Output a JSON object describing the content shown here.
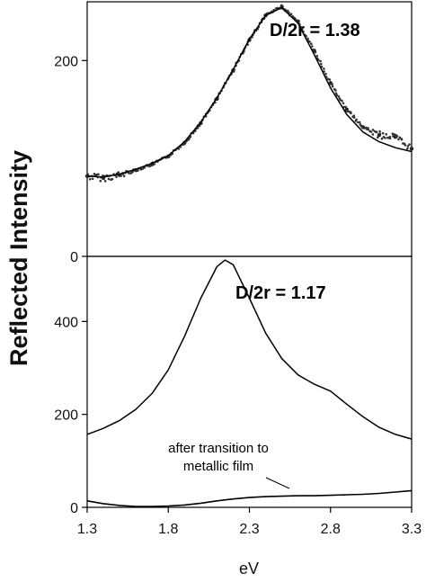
{
  "chart_data": {
    "type": "line",
    "xlabel": "eV",
    "ylabel": "Reflected Intensity",
    "x_ticks": [
      "1.3",
      "1.8",
      "2.3",
      "2.8",
      "3.3"
    ],
    "xlim": [
      1.3,
      3.3
    ],
    "panels": [
      {
        "label": "D/2r = 1.38",
        "ylim": [
          0,
          260
        ],
        "y_ticks": [
          "0",
          "200"
        ],
        "series": [
          {
            "style": "scatter-points",
            "x": [
              1.3,
              1.4,
              1.5,
              1.6,
              1.7,
              1.8,
              1.9,
              2.0,
              2.1,
              2.2,
              2.3,
              2.4,
              2.5,
              2.6,
              2.7,
              2.8,
              2.9,
              3.0,
              3.1,
              3.2,
              3.3
            ],
            "y": [
              82,
              80,
              83,
              88,
              94,
              102,
              116,
              136,
              161,
              190,
              221,
              246,
              255,
              240,
              210,
              177,
              150,
              132,
              124,
              122,
              110
            ]
          },
          {
            "style": "fit-line",
            "x": [
              1.3,
              1.4,
              1.5,
              1.6,
              1.7,
              1.8,
              1.9,
              2.0,
              2.1,
              2.2,
              2.3,
              2.4,
              2.5,
              2.6,
              2.7,
              2.8,
              2.9,
              3.0,
              3.1,
              3.2,
              3.3
            ],
            "y": [
              82,
              81,
              84,
              89,
              95,
              103,
              117,
              137,
              162,
              191,
              222,
              246,
              254,
              238,
              206,
              172,
              145,
              127,
              117,
              111,
              107
            ]
          }
        ]
      },
      {
        "label": "D/2r = 1.17",
        "ylim": [
          0,
          540
        ],
        "y_ticks": [
          "0",
          "200",
          "400"
        ],
        "annotation": "after transition to metallic film",
        "annotation_lines": [
          "after transition to",
          "metallic film"
        ],
        "series": [
          {
            "style": "line",
            "x": [
              1.3,
              1.4,
              1.5,
              1.6,
              1.7,
              1.8,
              1.9,
              2.0,
              2.1,
              2.15,
              2.2,
              2.3,
              2.4,
              2.5,
              2.6,
              2.7,
              2.8,
              2.9,
              3.0,
              3.1,
              3.2,
              3.3
            ],
            "y": [
              157,
              170,
              187,
              211,
              245,
              296,
              368,
              450,
              518,
              532,
              522,
              450,
              375,
              320,
              285,
              265,
              250,
              222,
              195,
              172,
              157,
              147
            ]
          },
          {
            "style": "noisy-line",
            "x": [
              1.3,
              1.4,
              1.5,
              1.6,
              1.7,
              1.8,
              1.9,
              2.0,
              2.1,
              2.2,
              2.3,
              2.4,
              2.5,
              2.6,
              2.7,
              2.8,
              2.9,
              3.0,
              3.1,
              3.2,
              3.3
            ],
            "y": [
              14,
              8,
              4,
              2,
              2,
              3,
              5,
              9,
              14,
              18,
              21,
              23,
              24,
              25,
              25,
              26,
              27,
              28,
              30,
              33,
              36
            ]
          }
        ]
      }
    ]
  }
}
